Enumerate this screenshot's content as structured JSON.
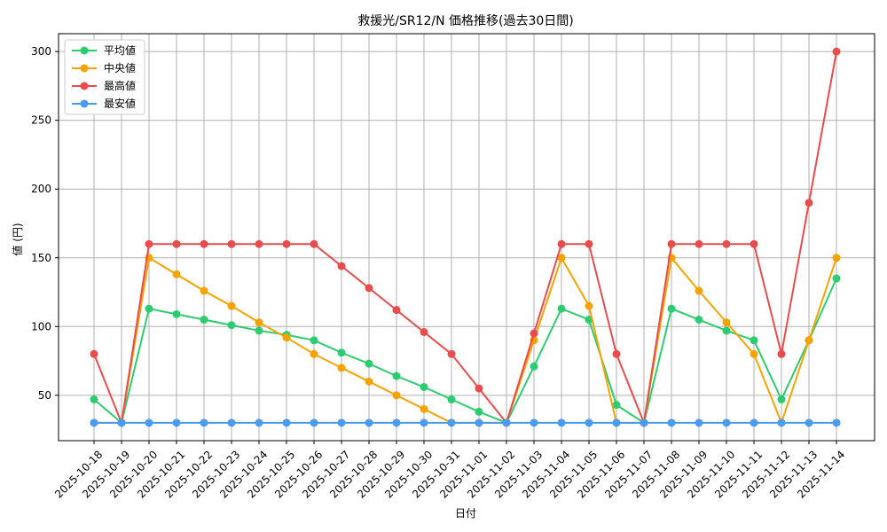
{
  "chart_data": {
    "type": "line",
    "title": "救援光/SR12/N 価格推移(過去30日間)",
    "xlabel": "日付",
    "ylabel": "値 (円)",
    "categories": [
      "2025-10-18",
      "2025-10-19",
      "2025-10-20",
      "2025-10-21",
      "2025-10-22",
      "2025-10-23",
      "2025-10-24",
      "2025-10-25",
      "2025-10-26",
      "2025-10-27",
      "2025-10-28",
      "2025-10-29",
      "2025-10-30",
      "2025-10-31",
      "2025-11-01",
      "2025-11-02",
      "2025-11-03",
      "2025-11-04",
      "2025-11-05",
      "2025-11-06",
      "2025-11-07",
      "2025-11-08",
      "2025-11-09",
      "2025-11-10",
      "2025-11-11",
      "2025-11-12",
      "2025-11-13",
      "2025-11-14"
    ],
    "ylim": [
      17,
      313
    ],
    "yticks": [
      50,
      100,
      150,
      200,
      250,
      300
    ],
    "grid": true,
    "legend_position": "top-left",
    "series": [
      {
        "name": "平均値",
        "color": "#2ecc71",
        "values": [
          47,
          30,
          113,
          109,
          105,
          101,
          97,
          94,
          90,
          81,
          73,
          64,
          56,
          47,
          38,
          30,
          71,
          113,
          105,
          43,
          30,
          113,
          105,
          97,
          90,
          47,
          90,
          135
        ]
      },
      {
        "name": "中央値",
        "color": "#f5a300",
        "values": [
          30,
          30,
          150,
          138,
          126,
          115,
          103,
          92,
          80,
          70,
          60,
          50,
          40,
          30,
          30,
          30,
          90,
          150,
          115,
          30,
          30,
          150,
          126,
          103,
          80,
          30,
          90,
          150
        ]
      },
      {
        "name": "最高値",
        "color": "#e84c4c",
        "values": [
          80,
          30,
          160,
          160,
          160,
          160,
          160,
          160,
          160,
          144,
          128,
          112,
          96,
          80,
          55,
          30,
          95,
          160,
          160,
          80,
          30,
          160,
          160,
          160,
          160,
          80,
          190,
          300
        ]
      },
      {
        "name": "最安値",
        "color": "#4b9cf0",
        "values": [
          30,
          30,
          30,
          30,
          30,
          30,
          30,
          30,
          30,
          30,
          30,
          30,
          30,
          30,
          30,
          30,
          30,
          30,
          30,
          30,
          30,
          30,
          30,
          30,
          30,
          30,
          30,
          30
        ]
      }
    ]
  }
}
